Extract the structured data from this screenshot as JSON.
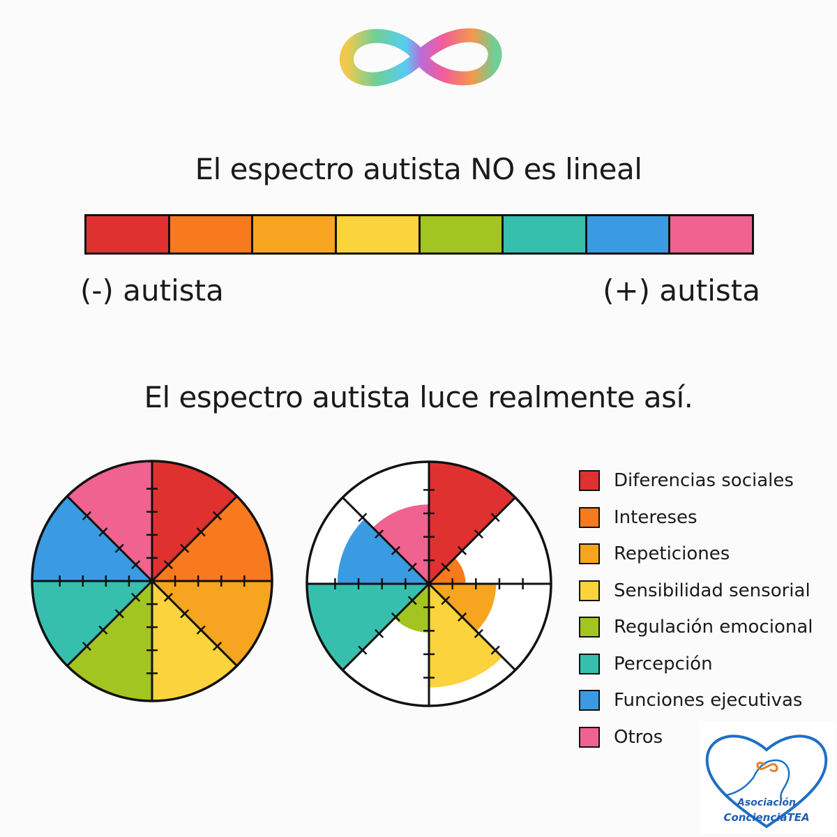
{
  "title_linear": "El espectro autista NO es lineal",
  "title_real": "El espectro autista luce realmente así.",
  "axis": {
    "left": "(-) autista",
    "right": "(+) autista"
  },
  "colors": {
    "red": "#e03131",
    "orange": "#f77a1f",
    "amber": "#f7a520",
    "yellow": "#fbd33d",
    "green": "#a3c521",
    "teal": "#37bfae",
    "blue": "#3a9be3",
    "pink": "#f0628f"
  },
  "linear_bar": [
    "red",
    "orange",
    "amber",
    "yellow",
    "green",
    "teal",
    "blue",
    "pink"
  ],
  "legend": [
    {
      "label": "Diferencias sociales",
      "color": "#e03131"
    },
    {
      "label": "Intereses",
      "color": "#f77a1f"
    },
    {
      "label": "Repeticiones",
      "color": "#f7a520"
    },
    {
      "label": "Sensibilidad sensorial",
      "color": "#fbd33d"
    },
    {
      "label": "Regulación emocional",
      "color": "#a3c521"
    },
    {
      "label": "Percepción",
      "color": "#37bfae"
    },
    {
      "label": "Funciones ejecutivas",
      "color": "#3a9be3"
    },
    {
      "label": "Otros",
      "color": "#f0628f"
    }
  ],
  "chart_data": {
    "type": "pie",
    "categories": [
      "Diferencias sociales",
      "Intereses",
      "Repeticiones",
      "Sensibilidad sensorial",
      "Regulación emocional",
      "Percepción",
      "Funciones ejecutivas",
      "Otros"
    ],
    "series": [
      {
        "values": [
          1,
          1,
          1,
          1,
          1,
          1,
          1,
          1
        ]
      },
      {
        "values": [
          1,
          0.3,
          0.55,
          0.85,
          0.4,
          1,
          0.75,
          0.65
        ]
      }
    ]
  },
  "badge": {
    "line1": "Asociación",
    "line2": "ConcienciaTEA"
  },
  "icons": [
    "infinity-logo-icon",
    "heart-logo-icon"
  ]
}
